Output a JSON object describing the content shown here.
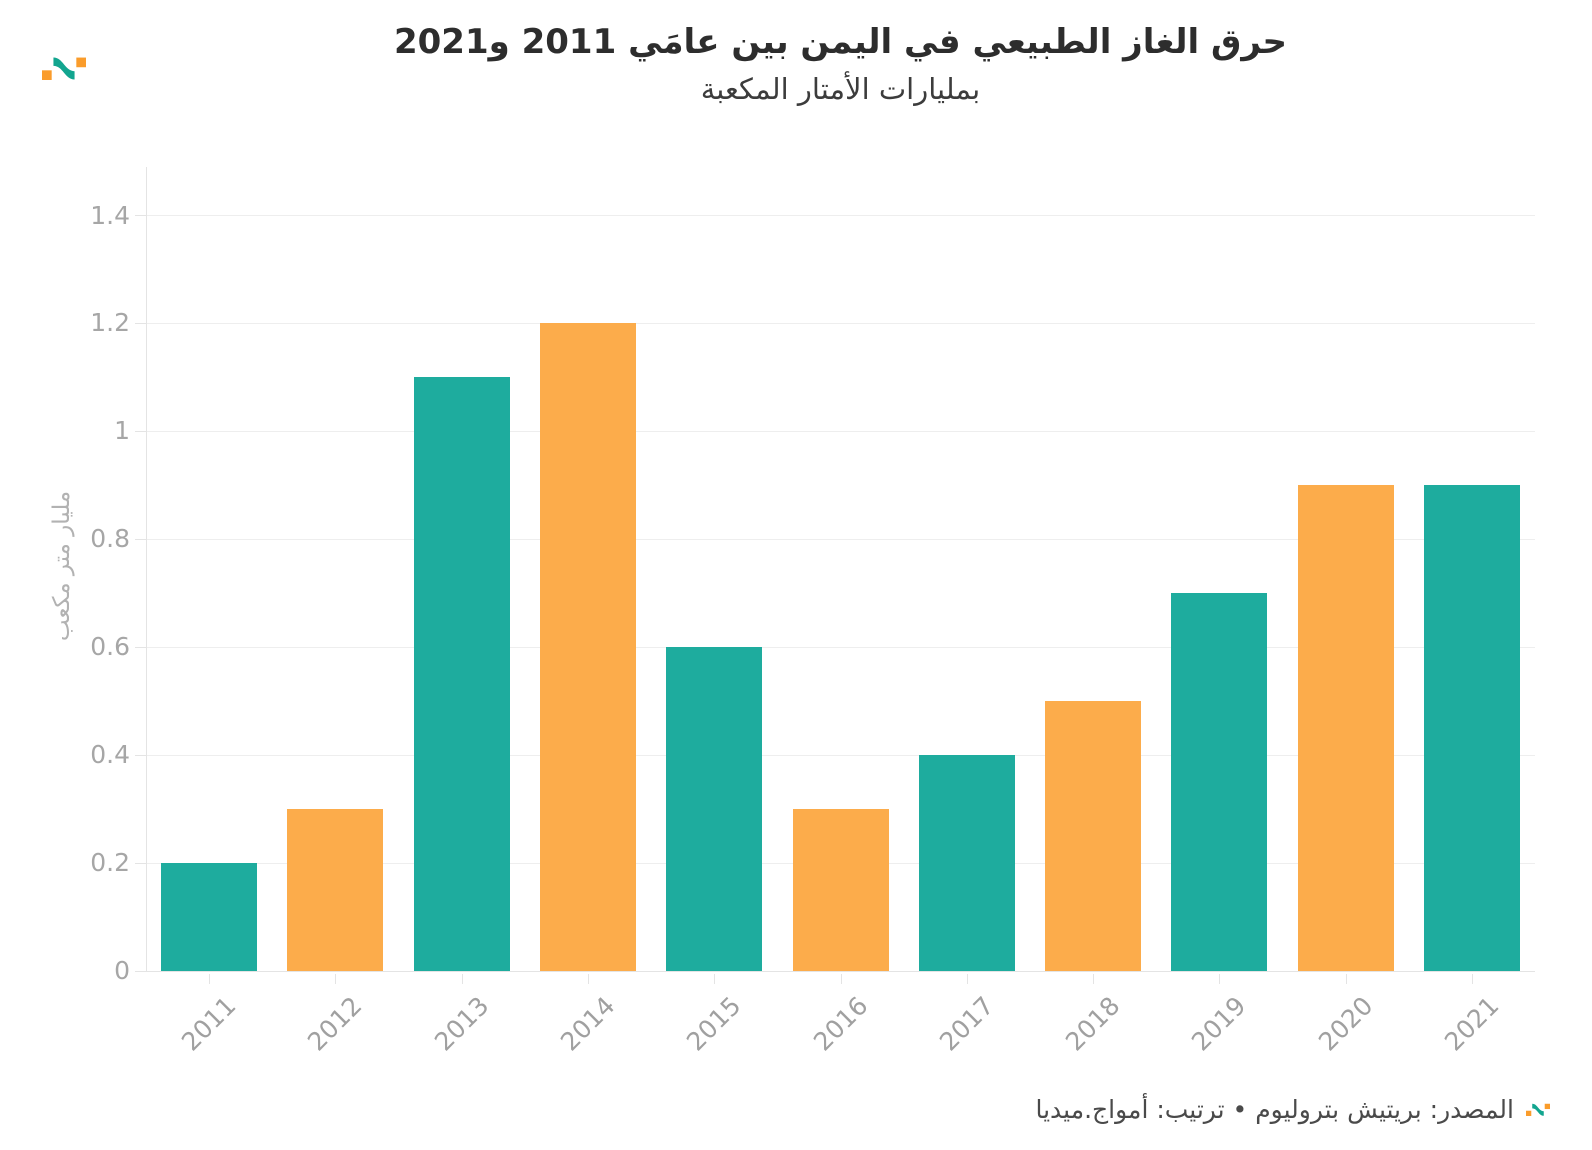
{
  "header": {
    "title": "حرق الغاز الطبيعي في اليمن بين عامَي 2011 و2021",
    "subtitle": "بمليارات الأمتار المكعبة",
    "logo_name": "amwaj-media-logo"
  },
  "chart_data": {
    "type": "bar",
    "title": "حرق الغاز الطبيعي في اليمن بين عامَي 2011 و2021",
    "subtitle": "بمليارات الأمتار المكعبة",
    "categories": [
      "2011",
      "2012",
      "2013",
      "2014",
      "2015",
      "2016",
      "2017",
      "2018",
      "2019",
      "2020",
      "2021"
    ],
    "values": [
      0.2,
      0.3,
      1.1,
      1.2,
      0.6,
      0.3,
      0.4,
      0.5,
      0.7,
      0.9,
      0.9
    ],
    "bar_colors": [
      "#1EAC9E",
      "#FCAC4B",
      "#1EAC9E",
      "#FCAC4B",
      "#1EAC9E",
      "#FCAC4B",
      "#1EAC9E",
      "#FCAC4B",
      "#1EAC9E",
      "#FCAC4B",
      "#1EAC9E"
    ],
    "xlabel": "",
    "ylabel": "مليار متر مكعب",
    "ylim": [
      0,
      1.49
    ],
    "yticks": [
      0,
      0.2,
      0.4,
      0.6,
      0.8,
      1,
      1.2,
      1.4
    ],
    "ytick_labels": [
      "0",
      "0.2",
      "0.4",
      "0.6",
      "0.8",
      "1",
      "1.2",
      "1.4"
    ],
    "grid": true,
    "legend": false,
    "x_labels_rotation_deg": -45,
    "accent_colors": {
      "teal": "#1EAC9E",
      "orange": "#FCAC4B"
    }
  },
  "footer": {
    "source_text": "المصدر: بريتيش بتروليوم • ترتيب: أمواج.ميديا"
  }
}
